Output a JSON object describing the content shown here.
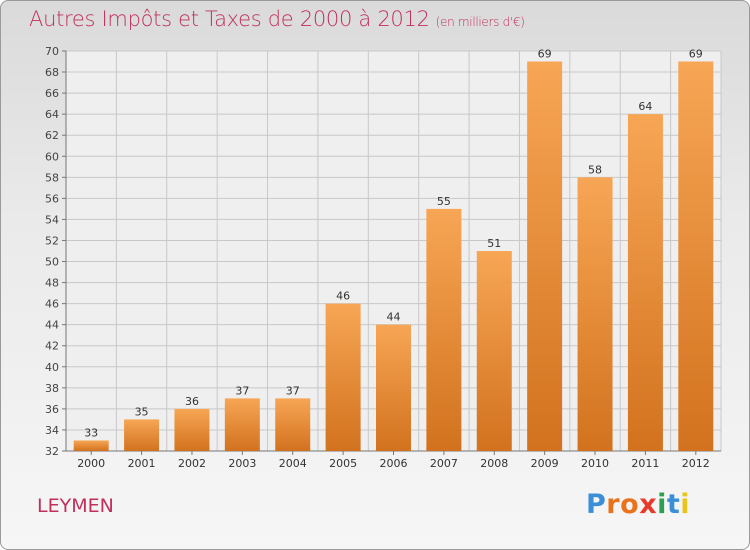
{
  "header": {
    "title": "Autres Impôts et Taxes de 2000 à 2012",
    "unit": "(en milliers d'€)"
  },
  "commune": "LEYMEN",
  "logo": {
    "text": "Proxiti",
    "letters": [
      {
        "ch": "P",
        "color": "#3a8fd6"
      },
      {
        "ch": "r",
        "color": "#e8731c"
      },
      {
        "ch": "o",
        "color": "#e8731c"
      },
      {
        "ch": "x",
        "color": "#e83a2a"
      },
      {
        "ch": "i",
        "color": "#2aa050"
      },
      {
        "ch": "t",
        "color": "#3a8fd6"
      },
      {
        "ch": "i",
        "color": "#e8c51c"
      }
    ]
  },
  "colors": {
    "bar_top": "#f7a655",
    "bar_bottom": "#d2721e",
    "title": "#c0305a",
    "grid": "#c8c8c8"
  },
  "chart_data": {
    "type": "bar",
    "categories": [
      "2000",
      "2001",
      "2002",
      "2003",
      "2004",
      "2005",
      "2006",
      "2007",
      "2008",
      "2009",
      "2010",
      "2011",
      "2012"
    ],
    "values": [
      33,
      35,
      36,
      37,
      37,
      46,
      44,
      55,
      51,
      69,
      58,
      64,
      69
    ],
    "ylim": [
      32,
      70
    ],
    "yticks": [
      32,
      34,
      36,
      38,
      40,
      42,
      44,
      46,
      48,
      50,
      52,
      54,
      56,
      58,
      60,
      62,
      64,
      66,
      68,
      70
    ],
    "grid": true,
    "title": "Autres Impôts et Taxes de 2000 à 2012",
    "ylabel": "(en milliers d'€)",
    "xlabel": ""
  }
}
